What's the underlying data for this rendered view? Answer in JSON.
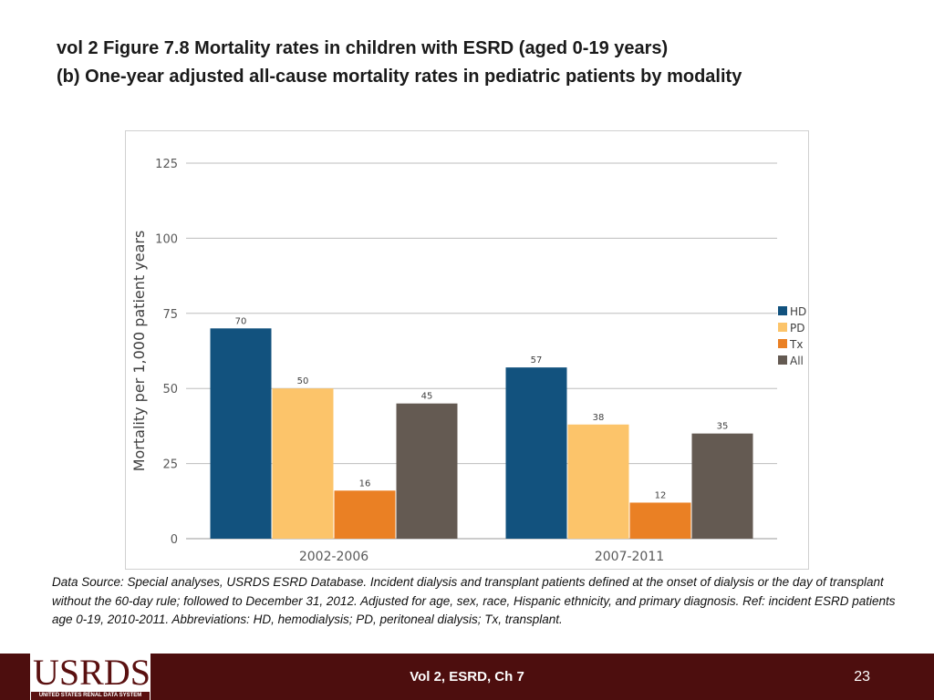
{
  "title": {
    "line1": "vol 2 Figure 7.8 Mortality rates in children with ESRD (aged 0-19 years)",
    "line2": "(b) One-year adjusted all-cause mortality rates in pediatric patients by modality"
  },
  "chart_data": {
    "type": "bar",
    "categories": [
      "2002-2006",
      "2007-2011"
    ],
    "series": [
      {
        "name": "HD",
        "values": [
          70,
          57
        ],
        "color": "#12527e"
      },
      {
        "name": "PD",
        "values": [
          50,
          38
        ],
        "color": "#fcc46a"
      },
      {
        "name": "Tx",
        "values": [
          16,
          12
        ],
        "color": "#ea8024"
      },
      {
        "name": "All",
        "values": [
          45,
          35
        ],
        "color": "#645a52"
      }
    ],
    "ylabel": "Mortality per 1,000 patient years",
    "xlabel": "",
    "ylim": [
      0,
      125
    ],
    "yticks": [
      0,
      25,
      50,
      75,
      100,
      125
    ],
    "grid": true,
    "legend": "right"
  },
  "source_note": "Data Source: Special analyses, USRDS ESRD Database. Incident dialysis and transplant patients defined at the onset of dialysis or the day of transplant without the 60-day rule; followed to December 31, 2012. Adjusted for age, sex, race, Hispanic ethnicity, and primary diagnosis. Ref: incident ESRD patients age 0-19, 2010-2011. Abbreviations: HD, hemodialysis; PD, peritoneal dialysis; Tx, transplant.",
  "footer": {
    "logo_text": "USRDS",
    "logo_subtitle": "UNITED STATES RENAL DATA SYSTEM",
    "center_text": "Vol 2, ESRD, Ch 7",
    "page_number": "23"
  }
}
